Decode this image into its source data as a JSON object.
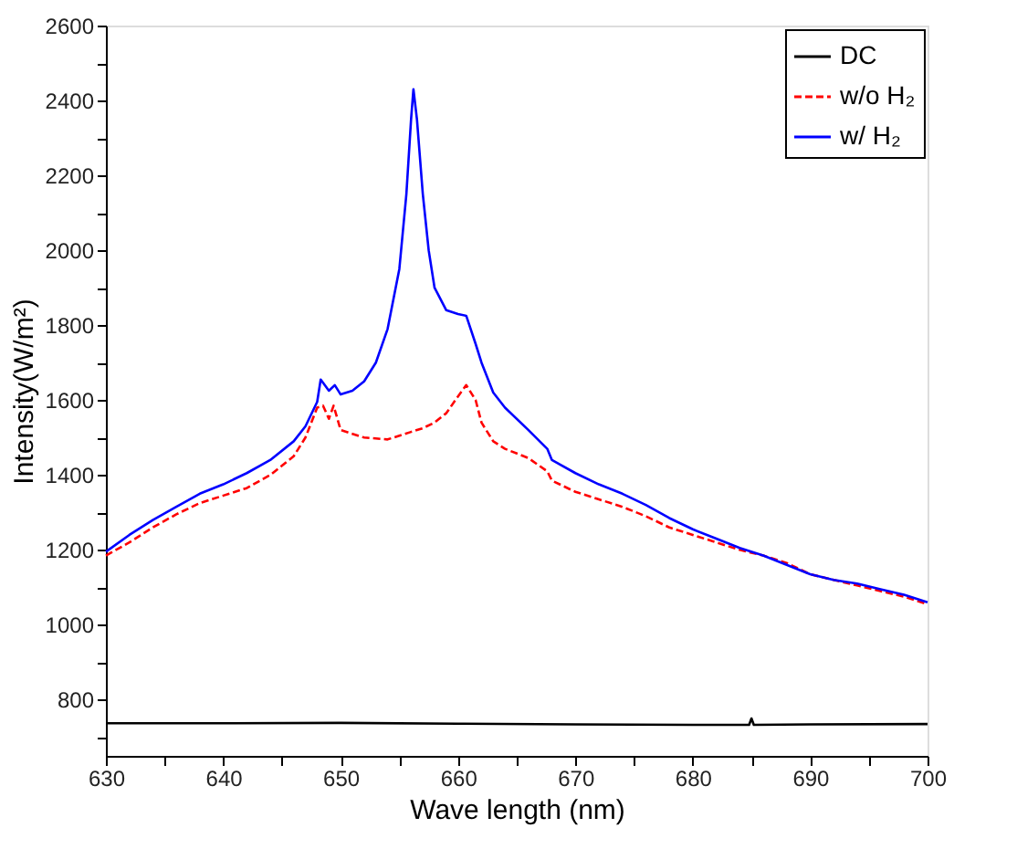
{
  "chart_data": {
    "type": "line",
    "xlabel": "Wave length (nm)",
    "ylabel": "Intensity(W/m²)",
    "xlim": [
      630,
      700
    ],
    "xticks": [
      630,
      {
        "value": 635,
        "label": null
      },
      640,
      {
        "value": 645,
        "label": null
      },
      650,
      {
        "value": 655,
        "label": null
      },
      660,
      {
        "value": 665,
        "label": null
      },
      670,
      {
        "value": 675,
        "label": null
      },
      680,
      {
        "value": 685,
        "label": null
      },
      690,
      {
        "value": 695,
        "label": null
      },
      700
    ],
    "ylim": [
      650,
      2600
    ],
    "yticks": [
      {
        "value": 700,
        "label": null
      },
      800,
      {
        "value": 900,
        "label": null
      },
      1000,
      {
        "value": 1100,
        "label": null
      },
      1200,
      {
        "value": 1300,
        "label": null
      },
      1400,
      {
        "value": 1500,
        "label": null
      },
      1600,
      {
        "value": 1700,
        "label": null
      },
      1800,
      {
        "value": 1900,
        "label": null
      },
      2000,
      {
        "value": 2100,
        "label": null
      },
      2200,
      {
        "value": 2300,
        "label": null
      },
      2400,
      {
        "value": 2500,
        "label": null
      },
      2600
    ],
    "grid": false,
    "legend": "top right",
    "marker": "none",
    "series": [
      {
        "name": "DC",
        "color": "#000000",
        "line_style": "solid",
        "x": [
          630,
          640,
          650,
          660,
          670,
          680,
          684.8,
          685,
          685.2,
          690,
          700
        ],
        "values": [
          737,
          737,
          738,
          736,
          734,
          733,
          733,
          750,
          733,
          734,
          735
        ]
      },
      {
        "name": "w/o H₂",
        "color": "#ff0000",
        "line_style": "dashed",
        "x": [
          630,
          632,
          634,
          636,
          638,
          640,
          642,
          644,
          646,
          647,
          648,
          648.5,
          649,
          649.4,
          650,
          651,
          652,
          654,
          656,
          657,
          658,
          659,
          660,
          660.7,
          661.5,
          662,
          663,
          664,
          666,
          667.6,
          668,
          670,
          672,
          674,
          676,
          678,
          680,
          682,
          684,
          686,
          688,
          690,
          692,
          694,
          696,
          698,
          700
        ],
        "values": [
          1185,
          1220,
          1260,
          1295,
          1325,
          1345,
          1365,
          1400,
          1450,
          1500,
          1580,
          1585,
          1550,
          1585,
          1520,
          1510,
          1500,
          1495,
          1515,
          1525,
          1540,
          1565,
          1610,
          1640,
          1600,
          1540,
          1490,
          1470,
          1445,
          1410,
          1385,
          1355,
          1335,
          1315,
          1290,
          1260,
          1240,
          1220,
          1200,
          1185,
          1165,
          1135,
          1120,
          1105,
          1090,
          1075,
          1055
        ]
      },
      {
        "name": "w/ H₂",
        "color": "#0000ff",
        "line_style": "solid",
        "x": [
          630,
          632,
          634,
          636,
          638,
          640,
          642,
          644,
          646,
          647,
          648,
          648.3,
          649,
          649.5,
          650,
          651,
          652,
          653,
          654,
          655,
          655.6,
          656,
          656.2,
          656.5,
          657,
          657.5,
          658,
          659,
          660,
          660.7,
          661.5,
          662,
          663,
          664,
          666,
          667.6,
          668,
          670,
          672,
          674,
          676,
          678,
          680,
          682,
          684,
          686,
          688,
          690,
          692,
          694,
          696,
          698,
          700
        ],
        "values": [
          1195,
          1240,
          1280,
          1315,
          1350,
          1375,
          1405,
          1440,
          1490,
          1530,
          1595,
          1655,
          1625,
          1640,
          1615,
          1625,
          1650,
          1700,
          1790,
          1950,
          2150,
          2350,
          2430,
          2350,
          2150,
          2000,
          1900,
          1840,
          1830,
          1825,
          1750,
          1700,
          1620,
          1580,
          1520,
          1470,
          1440,
          1405,
          1375,
          1350,
          1320,
          1285,
          1255,
          1230,
          1205,
          1185,
          1160,
          1135,
          1120,
          1110,
          1095,
          1080,
          1060
        ]
      }
    ]
  }
}
